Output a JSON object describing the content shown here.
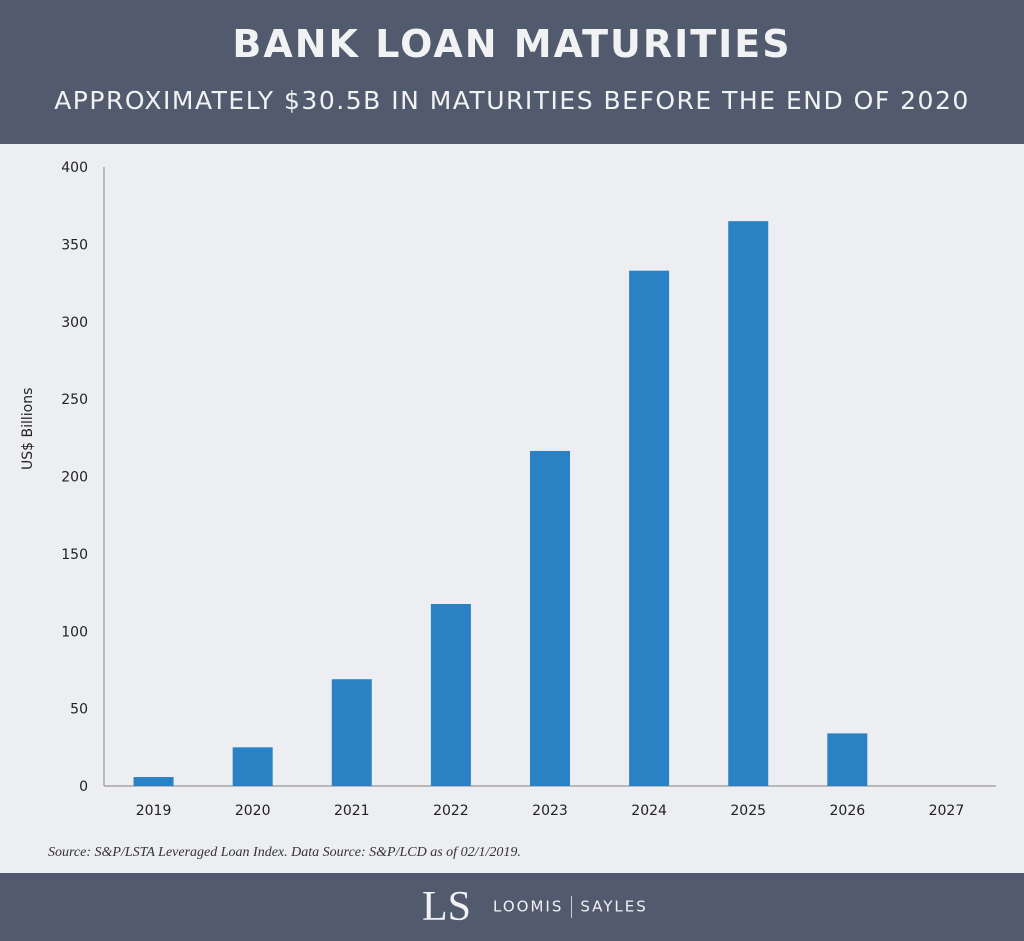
{
  "header": {
    "title": "BANK LOAN MATURITIES",
    "subtitle": "APPROXIMATELY $30.5B IN MATURITIES BEFORE THE END OF 2020"
  },
  "footer": {
    "source": "Source: S&P/LSTA Leveraged Loan Index. Data Source: S&P/LCD as of 02/1/2019.",
    "logo_mark": "LS",
    "logo_left": "LOOMIS",
    "logo_right": "SAYLES"
  },
  "colors": {
    "bar": "#2a82c4",
    "header_bg": "#525a6d",
    "plot_bg": "#eceef2",
    "axis": "#999999"
  },
  "chart_data": {
    "type": "bar",
    "title": "BANK LOAN MATURITIES",
    "subtitle": "APPROXIMATELY $30.5B IN MATURITIES BEFORE THE END OF 2020",
    "xlabel": "",
    "ylabel": "US$ Billions",
    "ylim": [
      0,
      400
    ],
    "yticks": [
      0,
      50,
      100,
      150,
      200,
      250,
      300,
      350,
      400
    ],
    "grid": false,
    "legend": null,
    "categories": [
      "2019",
      "2020",
      "2021",
      "2022",
      "2023",
      "2024",
      "2025",
      "2026",
      "2027"
    ],
    "values": [
      5.8,
      25,
      69,
      117.6,
      216.5,
      333,
      365,
      34,
      0
    ],
    "annotations": [
      "Source: S&P/LSTA Leveraged Loan Index. Data Source: S&P/LCD as of 02/1/2019."
    ]
  }
}
